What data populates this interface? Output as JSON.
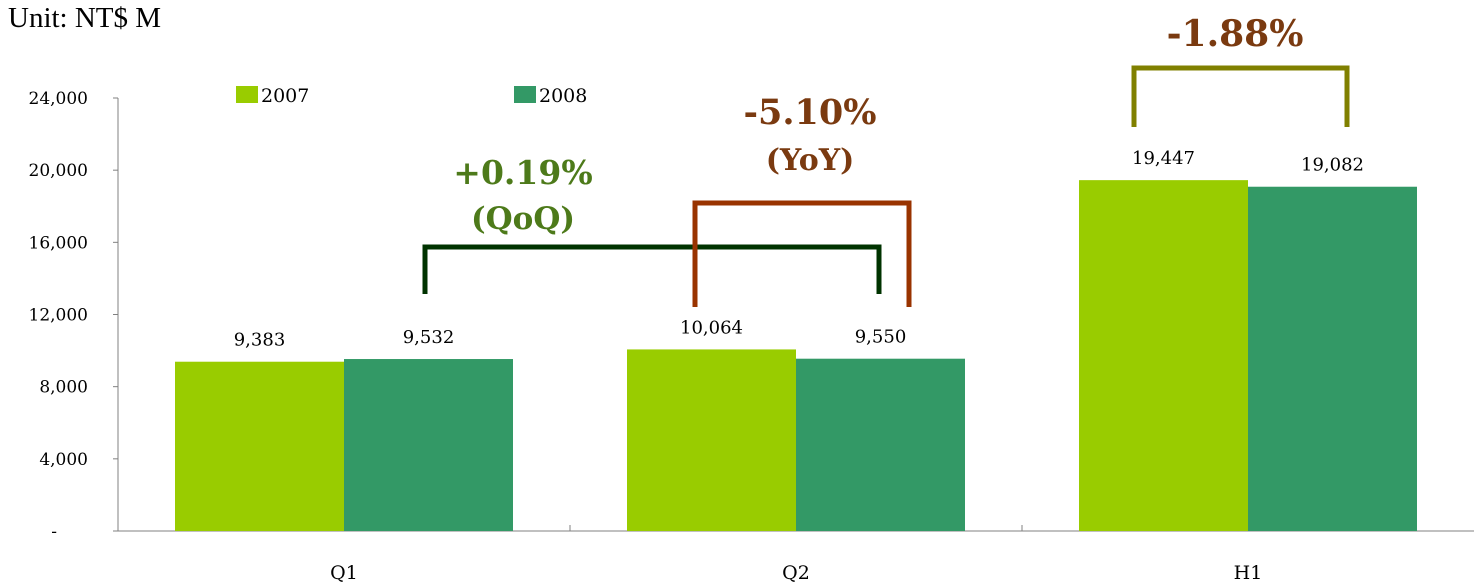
{
  "unit_label": "Unit: NT$ M",
  "colors": {
    "2007": "#99cc00",
    "2008": "#339966",
    "qoq": "#003300",
    "yoy": "#993300",
    "h1": "#808000",
    "ann_qoq_text": "#4d7a1a",
    "ann_yoy_text": "#7a3a10",
    "ann_h1_text": "#7a3a10"
  },
  "chart_data": {
    "type": "bar",
    "categories": [
      "Q1",
      "Q2",
      "H1"
    ],
    "series": [
      {
        "name": "2007",
        "values": [
          9383,
          10064,
          19447
        ]
      },
      {
        "name": "2008",
        "values": [
          9532,
          9550,
          19082
        ]
      }
    ],
    "data_labels": [
      [
        "9,383",
        "10,064",
        "19,447"
      ],
      [
        "9,532",
        "9,550",
        "19,082"
      ]
    ],
    "y_ticks": [
      {
        "value": 0,
        "label": "-"
      },
      {
        "value": 4000,
        "label": "4,000"
      },
      {
        "value": 8000,
        "label": "8,000"
      },
      {
        "value": 12000,
        "label": "12,000"
      },
      {
        "value": 16000,
        "label": "16,000"
      },
      {
        "value": 20000,
        "label": "20,000"
      },
      {
        "value": 24000,
        "label": "24,000"
      }
    ],
    "ylim": [
      0,
      24000
    ],
    "legend": [
      "2007",
      "2008"
    ],
    "legend_position": "top-left",
    "grid": false,
    "annotations": [
      {
        "id": "qoq",
        "lines": [
          "+0.19%",
          "(QoQ)"
        ],
        "from": "Q1-2008",
        "to": "Q2-2008"
      },
      {
        "id": "yoy",
        "lines": [
          "-5.10%",
          "(YoY)"
        ],
        "from": "Q2-2007",
        "to": "Q2-2008"
      },
      {
        "id": "h1",
        "lines": [
          "-1.88%"
        ],
        "from": "H1-2007",
        "to": "H1-2008"
      }
    ]
  }
}
